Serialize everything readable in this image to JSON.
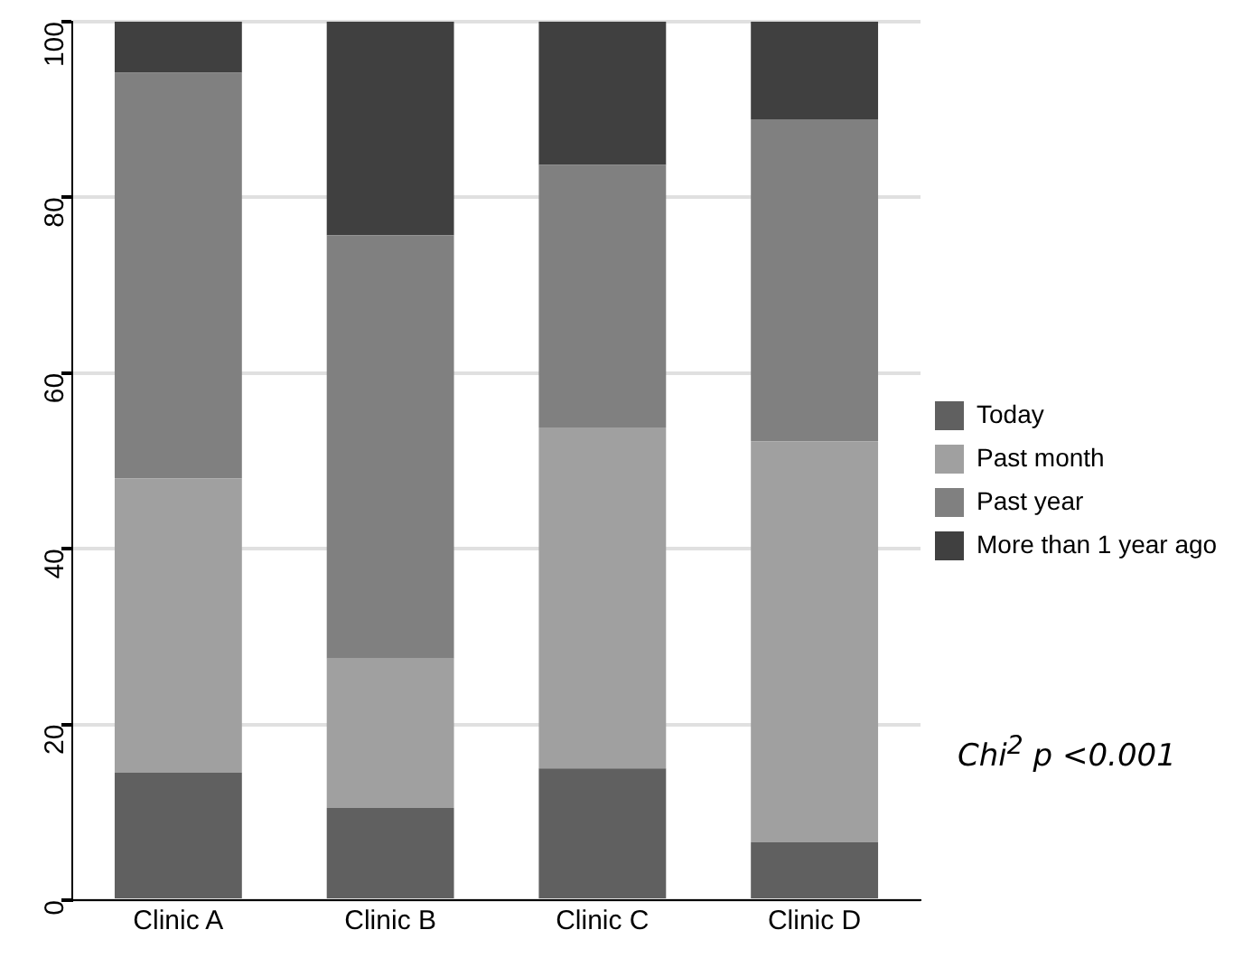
{
  "chart_data": {
    "type": "bar",
    "stacked": true,
    "categories": [
      "Clinic A",
      "Clinic B",
      "Clinic C",
      "Clinic D"
    ],
    "series": [
      {
        "name": "Today",
        "color": "#606060",
        "values": [
          14.5,
          10.5,
          15,
          6.6
        ]
      },
      {
        "name": "Past month",
        "color": "#a0a0a0",
        "values": [
          33.5,
          17,
          38.8,
          45.6
        ]
      },
      {
        "name": "Past year",
        "color": "#808080",
        "values": [
          46.2,
          48.2,
          29.9,
          36.7
        ]
      },
      {
        "name": "More than 1 year ago",
        "color": "#404040",
        "values": [
          5.8,
          24.3,
          16.3,
          11.1
        ]
      }
    ],
    "ylim": [
      0,
      100
    ],
    "yticks": [
      0,
      20,
      40,
      60,
      80,
      100
    ],
    "grid": "y",
    "legend": "right",
    "annotations": [
      "Chi$^{2}$ p <0.001"
    ]
  }
}
